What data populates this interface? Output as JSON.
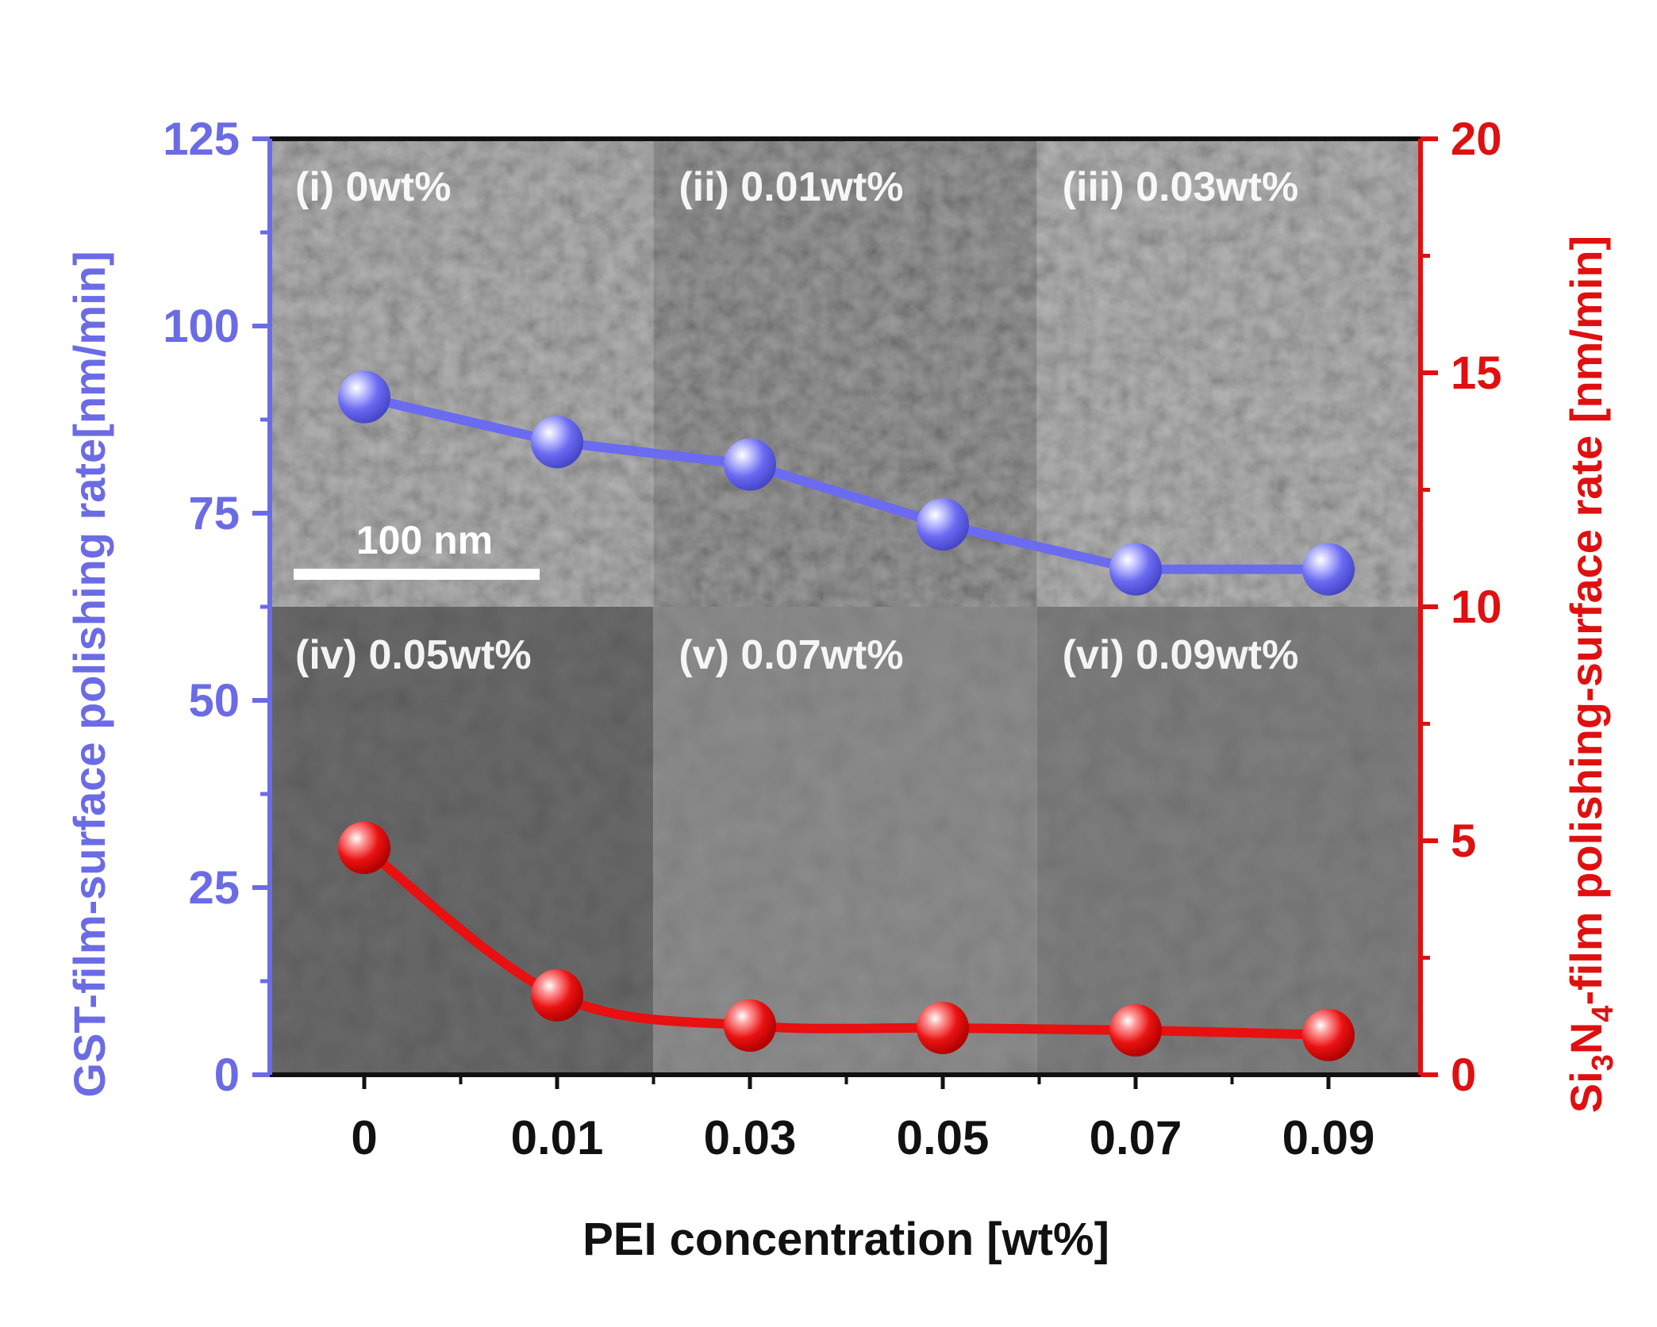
{
  "chart_data": {
    "type": "line",
    "x_label_parts": [
      "PEI concentration [wt%]"
    ],
    "xlabel": "PEI concentration [wt%]",
    "categories": [
      "0",
      "0.01",
      "0.03",
      "0.05",
      "0.07",
      "0.09"
    ],
    "y_left": {
      "label": "GST-film-surface polishing rate[nm/min]",
      "range": [
        0,
        125
      ],
      "ticks": [
        "0",
        "25",
        "50",
        "75",
        "100",
        "125"
      ],
      "color": "#6b6be6"
    },
    "y_right": {
      "label_prefix": "Si",
      "label_sub1": "3",
      "label_mid": "N",
      "label_sub2": "4",
      "label_suffix": "-film polishing-surface rate [nm/min]",
      "range": [
        0,
        20
      ],
      "ticks": [
        "0",
        "5",
        "10",
        "15",
        "20"
      ],
      "color": "#e01010"
    },
    "series": [
      {
        "name": "GST-film-surface polishing rate",
        "axis": "left",
        "color": "#6b6bf0",
        "values": [
          90.5,
          84.5,
          81.5,
          73.5,
          67.5,
          67.5
        ]
      },
      {
        "name": "Si3N4-film polishing-surface rate",
        "axis": "right",
        "color": "#e81010",
        "values": [
          4.85,
          1.7,
          1.05,
          1.0,
          0.95,
          0.85
        ]
      }
    ],
    "panels": [
      "(i) 0wt%",
      "(ii) 0.01wt%",
      "(iii) 0.03wt%",
      "(iv) 0.05wt%",
      "(v) 0.07wt%",
      "(vi) 0.09wt%"
    ],
    "scale_bar": "100 nm"
  },
  "colors": {
    "left_axis": "#6b6be6",
    "right_axis": "#e01010",
    "panel_text": "#ffffff"
  }
}
